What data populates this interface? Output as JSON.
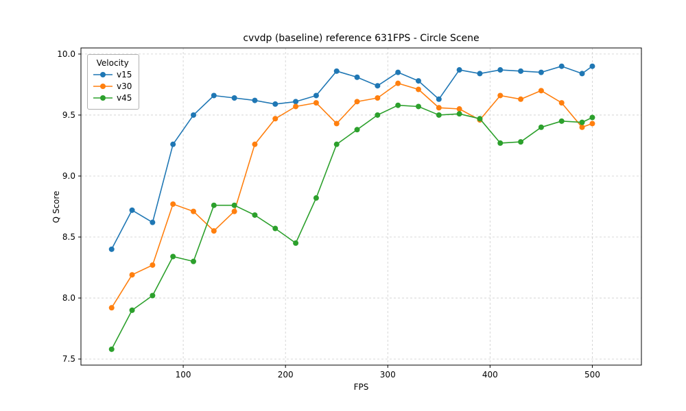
{
  "chart_data": {
    "type": "line",
    "title": "cvvdp (baseline) reference 631FPS - Circle Scene",
    "xlabel": "FPS",
    "ylabel": "Q Score",
    "legend_title": "Velocity",
    "legend_position": "upper left",
    "grid": true,
    "xlim": [
      0,
      548
    ],
    "ylim": [
      7.45,
      10.05
    ],
    "xticks": [
      100,
      200,
      300,
      400,
      500
    ],
    "yticks": [
      7.5,
      8.0,
      8.5,
      9.0,
      9.5,
      10.0
    ],
    "x": [
      30,
      50,
      70,
      90,
      110,
      130,
      150,
      170,
      190,
      210,
      230,
      250,
      270,
      290,
      310,
      330,
      350,
      370,
      390,
      410,
      430,
      450,
      470,
      490,
      500
    ],
    "series": [
      {
        "name": "v15",
        "color": "#1f77b4",
        "values": [
          8.4,
          8.72,
          8.62,
          9.26,
          9.5,
          9.66,
          9.64,
          9.62,
          9.59,
          9.61,
          9.66,
          9.86,
          9.81,
          9.74,
          9.85,
          9.78,
          9.63,
          9.87,
          9.84,
          9.87,
          9.86,
          9.85,
          9.9,
          9.84,
          9.9
        ]
      },
      {
        "name": "v30",
        "color": "#ff7f0e",
        "values": [
          7.92,
          8.19,
          8.27,
          8.77,
          8.71,
          8.55,
          8.71,
          9.26,
          9.47,
          9.57,
          9.6,
          9.43,
          9.61,
          9.64,
          9.76,
          9.71,
          9.56,
          9.55,
          9.46,
          9.66,
          9.63,
          9.7,
          9.6,
          9.4,
          9.43
        ]
      },
      {
        "name": "v45",
        "color": "#2ca02c",
        "values": [
          7.58,
          7.9,
          8.02,
          8.34,
          8.3,
          8.76,
          8.76,
          8.68,
          8.57,
          8.45,
          8.82,
          9.26,
          9.38,
          9.5,
          9.58,
          9.57,
          9.5,
          9.51,
          9.47,
          9.27,
          9.28,
          9.4,
          9.45,
          9.44,
          9.48
        ]
      }
    ],
    "styles": {
      "grid_color": "#cccccc",
      "axis_color": "#000000",
      "tick_label_color": "#000000"
    }
  }
}
